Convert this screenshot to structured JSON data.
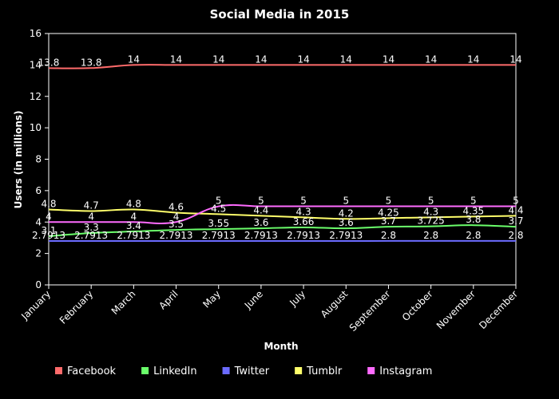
{
  "chart_data": {
    "type": "line",
    "title": "Social Media in 2015",
    "xlabel": "Month",
    "ylabel": "Users (in millions)",
    "ylim": [
      0,
      16
    ],
    "yticks": [
      0,
      2,
      4,
      6,
      8,
      10,
      12,
      14,
      16
    ],
    "grid": false,
    "legend_position": "bottom",
    "categories": [
      "January",
      "February",
      "March",
      "April",
      "May",
      "June",
      "July",
      "August",
      "September",
      "October",
      "November",
      "December"
    ],
    "series": [
      {
        "name": "Facebook",
        "color": "#ff6b6b",
        "values": [
          13.8,
          13.8,
          14,
          14,
          14,
          14,
          14,
          14,
          14,
          14,
          14,
          14
        ],
        "labels": [
          "13.8",
          "13.8",
          "14",
          "14",
          "14",
          "14",
          "14",
          "14",
          "14",
          "14",
          "14",
          "14"
        ]
      },
      {
        "name": "LinkedIn",
        "color": "#6bff6b",
        "values": [
          3.1,
          3.3,
          3.4,
          3.5,
          3.55,
          3.6,
          3.66,
          3.6,
          3.7,
          3.725,
          3.8,
          3.7
        ],
        "labels": [
          "3.1",
          "3.3",
          "3.4",
          "3.5",
          "3.55",
          "3.6",
          "3.66",
          "3.6",
          "3.7",
          "3.725",
          "3.8",
          "3.7"
        ]
      },
      {
        "name": "Twitter",
        "color": "#6b6bff",
        "values": [
          2.7913,
          2.7913,
          2.7913,
          2.7913,
          2.7913,
          2.7913,
          2.7913,
          2.7913,
          2.8,
          2.8,
          2.8,
          2.8
        ],
        "labels": [
          "2.7913",
          "2.7913",
          "2.7913",
          "2.7913",
          "2.7913",
          "2.7913",
          "2.7913",
          "2.7913",
          "2.8",
          "2.8",
          "2.8",
          "2.8"
        ]
      },
      {
        "name": "Tumblr",
        "color": "#ffff6b",
        "values": [
          4.8,
          4.7,
          4.8,
          4.6,
          4.5,
          4.4,
          4.3,
          4.2,
          4.25,
          4.3,
          4.35,
          4.4
        ],
        "labels": [
          "4.8",
          "4.7",
          "4.8",
          "4.6",
          "4.5",
          "4.4",
          "4.3",
          "4.2",
          "4.25",
          "4.3",
          "4.35",
          "4.4"
        ]
      },
      {
        "name": "Instagram",
        "color": "#ff6bff",
        "values": [
          4,
          4,
          4,
          4,
          5,
          5,
          5,
          5,
          5,
          5,
          5,
          5
        ],
        "labels": [
          "4",
          "4",
          "4",
          "4",
          "5",
          "5",
          "5",
          "5",
          "5",
          "5",
          "5",
          "5"
        ]
      }
    ]
  }
}
